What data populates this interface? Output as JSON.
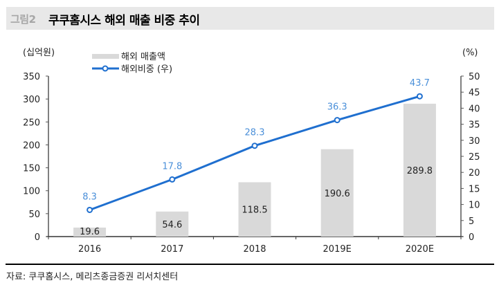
{
  "header": {
    "figure_label": "그림2",
    "title": "쿠쿠홈시스 해외 매출 비중 추이"
  },
  "footer": {
    "source": "자료: 쿠쿠홈시스, 메리츠종금증권 리서치센터"
  },
  "colors": {
    "bar": "#d9d9d9",
    "line": "#1f6fcf",
    "line_label": "#4a8fd9",
    "axis": "#555555",
    "text": "#222222"
  },
  "chart_data": {
    "type": "bar+line",
    "title": "쿠쿠홈시스 해외 매출 비중 추이",
    "categories": [
      "2016",
      "2017",
      "2018",
      "2019E",
      "2020E"
    ],
    "y_left": {
      "unit_label": "(십억원)",
      "ylim": [
        0,
        350
      ],
      "ticks": [
        "0",
        "50",
        "100",
        "150",
        "200",
        "250",
        "300",
        "350"
      ]
    },
    "y_right": {
      "unit_label": "(%)",
      "ylim": [
        0,
        50
      ],
      "ticks": [
        "0",
        "5",
        "10",
        "15",
        "20",
        "25",
        "30",
        "35",
        "40",
        "45",
        "50"
      ]
    },
    "series": [
      {
        "name": "해외 매출액",
        "type": "bar",
        "axis": "left",
        "values": [
          19.6,
          54.6,
          118.5,
          190.6,
          289.8
        ],
        "labels": [
          "19.6",
          "54.6",
          "118.5",
          "190.6",
          "289.8"
        ]
      },
      {
        "name": "해외비중 (우)",
        "type": "line",
        "axis": "right",
        "values": [
          8.3,
          17.8,
          28.3,
          36.3,
          43.7
        ],
        "labels": [
          "8.3",
          "17.8",
          "28.3",
          "36.3",
          "43.7"
        ]
      }
    ],
    "legend": "top-left",
    "grid": false
  }
}
